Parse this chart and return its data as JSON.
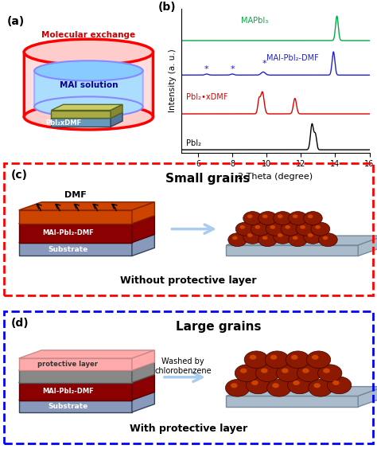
{
  "panel_labels": [
    "(a)",
    "(b)",
    "(c)",
    "(d)"
  ],
  "xrd_xlim": [
    5,
    16
  ],
  "xrd_xlabel": "2 Theta (degree)",
  "xrd_ylabel": "Intensity (a. u.)",
  "xrd_labels": [
    "MAPbI₃",
    "MAI-PbI₂-DMF",
    "PbI₂•xDMF",
    "PbI₂"
  ],
  "xrd_colors": [
    "#00aa44",
    "#2222cc",
    "#dd0000",
    "#000000"
  ],
  "background_color": "#ffffff",
  "panel_c_border": "#cc0000",
  "panel_d_border": "#0000cc",
  "without_label": "Without protective layer",
  "with_label": "With protective layer",
  "small_grains_label": "Small grains",
  "large_grains_label": "Large grains",
  "dmf_label": "DMF",
  "washed_label": "Washed by\nchlorobenzene",
  "mai_label": "MAI-PbI₂-DMF",
  "substrate_label": "Substrate",
  "protective_label": "protective layer",
  "mol_exchange_label": "Molecular exchange",
  "mai_solution_label": "MAI solution",
  "pbi2dmf_label": "PbI₂xDMF"
}
